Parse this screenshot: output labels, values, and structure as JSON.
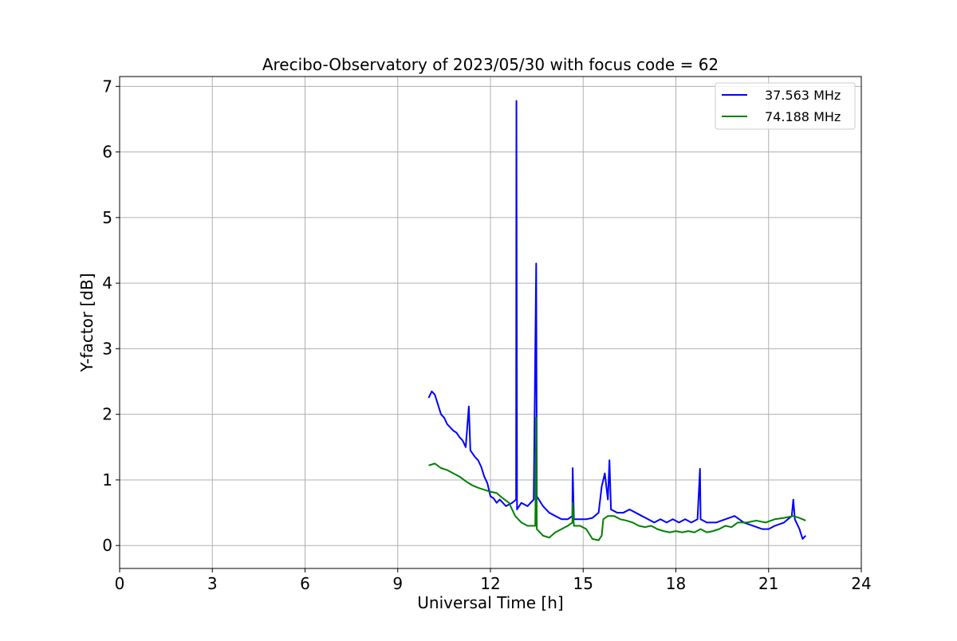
{
  "chart_data": {
    "type": "line",
    "title": "Arecibo-Observatory of 2023/05/30 with focus code = 62",
    "xlabel": "Universal Time [h]",
    "ylabel": "Y-factor [dB]",
    "xlim": [
      0,
      24
    ],
    "ylim": [
      -0.35,
      7.15
    ],
    "xticks": [
      0,
      3,
      6,
      9,
      12,
      15,
      18,
      21,
      24
    ],
    "yticks": [
      0,
      1,
      2,
      3,
      4,
      5,
      6,
      7
    ],
    "grid": true,
    "legend_position": "top-right",
    "series": [
      {
        "name": "37.563 MHz",
        "color": "#0000ff",
        "points": [
          [
            10.0,
            2.25
          ],
          [
            10.1,
            2.35
          ],
          [
            10.2,
            2.3
          ],
          [
            10.3,
            2.15
          ],
          [
            10.4,
            2.0
          ],
          [
            10.5,
            1.95
          ],
          [
            10.6,
            1.85
          ],
          [
            10.7,
            1.8
          ],
          [
            10.8,
            1.75
          ],
          [
            10.9,
            1.72
          ],
          [
            11.0,
            1.65
          ],
          [
            11.1,
            1.6
          ],
          [
            11.2,
            1.5
          ],
          [
            11.3,
            2.12
          ],
          [
            11.35,
            1.45
          ],
          [
            11.5,
            1.35
          ],
          [
            11.6,
            1.3
          ],
          [
            11.7,
            1.2
          ],
          [
            11.8,
            1.05
          ],
          [
            11.9,
            0.95
          ],
          [
            12.0,
            0.75
          ],
          [
            12.1,
            0.72
          ],
          [
            12.2,
            0.65
          ],
          [
            12.3,
            0.7
          ],
          [
            12.5,
            0.6
          ],
          [
            12.7,
            0.65
          ],
          [
            12.83,
            0.7
          ],
          [
            12.84,
            6.78
          ],
          [
            12.86,
            0.55
          ],
          [
            13.0,
            0.65
          ],
          [
            13.2,
            0.6
          ],
          [
            13.4,
            0.7
          ],
          [
            13.48,
            4.3
          ],
          [
            13.5,
            0.75
          ],
          [
            13.7,
            0.6
          ],
          [
            13.9,
            0.5
          ],
          [
            14.1,
            0.45
          ],
          [
            14.3,
            0.4
          ],
          [
            14.5,
            0.4
          ],
          [
            14.65,
            0.45
          ],
          [
            14.66,
            1.18
          ],
          [
            14.7,
            0.4
          ],
          [
            14.9,
            0.4
          ],
          [
            15.1,
            0.4
          ],
          [
            15.3,
            0.42
          ],
          [
            15.5,
            0.5
          ],
          [
            15.6,
            0.9
          ],
          [
            15.7,
            1.1
          ],
          [
            15.8,
            0.7
          ],
          [
            15.85,
            1.3
          ],
          [
            15.9,
            0.55
          ],
          [
            16.1,
            0.5
          ],
          [
            16.3,
            0.5
          ],
          [
            16.5,
            0.55
          ],
          [
            16.7,
            0.5
          ],
          [
            16.9,
            0.45
          ],
          [
            17.1,
            0.4
          ],
          [
            17.3,
            0.35
          ],
          [
            17.5,
            0.4
          ],
          [
            17.7,
            0.35
          ],
          [
            17.9,
            0.4
          ],
          [
            18.1,
            0.35
          ],
          [
            18.3,
            0.4
          ],
          [
            18.5,
            0.35
          ],
          [
            18.7,
            0.4
          ],
          [
            18.78,
            1.17
          ],
          [
            18.8,
            0.4
          ],
          [
            19.0,
            0.35
          ],
          [
            19.3,
            0.35
          ],
          [
            19.6,
            0.4
          ],
          [
            19.9,
            0.45
          ],
          [
            20.2,
            0.35
          ],
          [
            20.5,
            0.3
          ],
          [
            20.8,
            0.25
          ],
          [
            21.0,
            0.25
          ],
          [
            21.2,
            0.3
          ],
          [
            21.5,
            0.35
          ],
          [
            21.75,
            0.45
          ],
          [
            21.8,
            0.7
          ],
          [
            21.85,
            0.4
          ],
          [
            22.0,
            0.25
          ],
          [
            22.1,
            0.1
          ],
          [
            22.2,
            0.15
          ]
        ]
      },
      {
        "name": "74.188 MHz",
        "color": "#008000",
        "points": [
          [
            10.0,
            1.22
          ],
          [
            10.2,
            1.25
          ],
          [
            10.4,
            1.18
          ],
          [
            10.6,
            1.15
          ],
          [
            10.8,
            1.1
          ],
          [
            11.0,
            1.05
          ],
          [
            11.2,
            0.98
          ],
          [
            11.4,
            0.92
          ],
          [
            11.6,
            0.88
          ],
          [
            11.8,
            0.85
          ],
          [
            12.0,
            0.82
          ],
          [
            12.2,
            0.8
          ],
          [
            12.4,
            0.72
          ],
          [
            12.6,
            0.65
          ],
          [
            12.8,
            0.45
          ],
          [
            13.0,
            0.35
          ],
          [
            13.2,
            0.3
          ],
          [
            13.45,
            0.3
          ],
          [
            13.48,
            1.95
          ],
          [
            13.5,
            0.25
          ],
          [
            13.7,
            0.15
          ],
          [
            13.9,
            0.12
          ],
          [
            14.1,
            0.2
          ],
          [
            14.3,
            0.25
          ],
          [
            14.5,
            0.3
          ],
          [
            14.65,
            0.35
          ],
          [
            14.66,
            0.65
          ],
          [
            14.7,
            0.3
          ],
          [
            14.9,
            0.3
          ],
          [
            15.1,
            0.25
          ],
          [
            15.3,
            0.1
          ],
          [
            15.5,
            0.08
          ],
          [
            15.6,
            0.15
          ],
          [
            15.65,
            0.4
          ],
          [
            15.8,
            0.45
          ],
          [
            16.0,
            0.45
          ],
          [
            16.2,
            0.4
          ],
          [
            16.4,
            0.38
          ],
          [
            16.6,
            0.35
          ],
          [
            16.8,
            0.3
          ],
          [
            17.0,
            0.28
          ],
          [
            17.2,
            0.3
          ],
          [
            17.4,
            0.25
          ],
          [
            17.6,
            0.22
          ],
          [
            17.8,
            0.2
          ],
          [
            18.0,
            0.22
          ],
          [
            18.2,
            0.2
          ],
          [
            18.4,
            0.22
          ],
          [
            18.6,
            0.2
          ],
          [
            18.8,
            0.25
          ],
          [
            19.0,
            0.2
          ],
          [
            19.2,
            0.22
          ],
          [
            19.4,
            0.25
          ],
          [
            19.6,
            0.3
          ],
          [
            19.8,
            0.28
          ],
          [
            20.0,
            0.35
          ],
          [
            20.3,
            0.35
          ],
          [
            20.6,
            0.38
          ],
          [
            20.9,
            0.35
          ],
          [
            21.2,
            0.4
          ],
          [
            21.5,
            0.42
          ],
          [
            21.8,
            0.45
          ],
          [
            22.0,
            0.42
          ],
          [
            22.2,
            0.38
          ]
        ]
      }
    ]
  }
}
